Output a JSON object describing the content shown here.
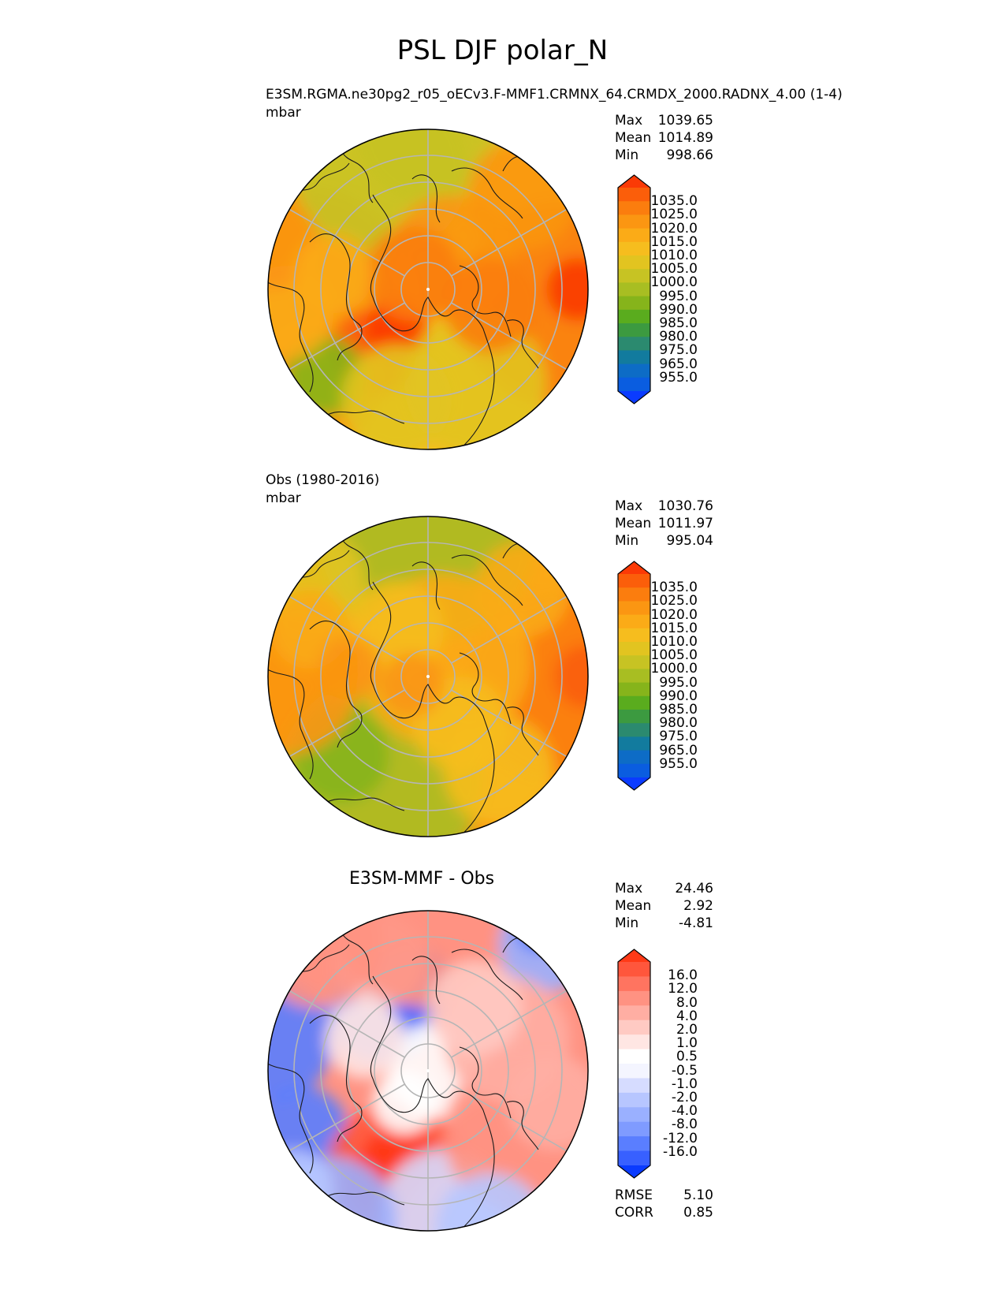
{
  "title": "PSL DJF polar_N",
  "palettes": {
    "abs": [
      "#0a3bff",
      "#0a5de0",
      "#0d6cc6",
      "#127b9e",
      "#2b8a6f",
      "#3c9a40",
      "#5aac1e",
      "#86b41b",
      "#a8be22",
      "#c7c323",
      "#e2c420",
      "#f6bd1e",
      "#fbab17",
      "#fb9612",
      "#fb7d0e",
      "#fb5e0a",
      "#fb3a06"
    ],
    "diff": [
      "#0a3bff",
      "#3860ff",
      "#5a7eff",
      "#7f9bff",
      "#9ab0ff",
      "#b7c6ff",
      "#d6dcff",
      "#f4f5ff",
      "#ffffff",
      "#ffe6e3",
      "#ffcac3",
      "#ffaea3",
      "#ff9282",
      "#ff7460",
      "#ff563c",
      "#ff3a17"
    ]
  },
  "panels": [
    {
      "id": "model",
      "title_line1": "E3SM.RGMA.ne30pg2_r05_oECv3.F-MMF1.CRMNX_64.CRMDX_2000.RADNX_4.00 (1-4)",
      "title_line2": "mbar",
      "stats": {
        "max_label": "Max",
        "max": "1039.65",
        "mean_label": "Mean",
        "mean": "1014.89",
        "min_label": "Min",
        "min": "998.66"
      },
      "colorbar_ticks": [
        "1035.0",
        "1025.0",
        "1020.0",
        "1015.0",
        "1010.0",
        "1005.0",
        "1000.0",
        "995.0",
        "990.0",
        "985.0",
        "980.0",
        "975.0",
        "965.0",
        "955.0"
      ]
    },
    {
      "id": "obs",
      "title_line1": "Obs (1980-2016)",
      "title_line2": "mbar",
      "stats": {
        "max_label": "Max",
        "max": "1030.76",
        "mean_label": "Mean",
        "mean": "1011.97",
        "min_label": "Min",
        "min": "995.04"
      },
      "colorbar_ticks": [
        "1035.0",
        "1025.0",
        "1020.0",
        "1015.0",
        "1010.0",
        "1005.0",
        "1000.0",
        "995.0",
        "990.0",
        "985.0",
        "980.0",
        "975.0",
        "965.0",
        "955.0"
      ]
    },
    {
      "id": "diff",
      "subtitle": "E3SM-MMF - Obs",
      "stats": {
        "max_label": "Max",
        "max": "24.46",
        "mean_label": "Mean",
        "mean": "2.92",
        "min_label": "Min",
        "min": "-4.81"
      },
      "colorbar_ticks": [
        "16.0",
        "12.0",
        "8.0",
        "4.0",
        "2.0",
        "1.0",
        "0.5",
        "-0.5",
        "-1.0",
        "-2.0",
        "-4.0",
        "-8.0",
        "-12.0",
        "-16.0"
      ],
      "metrics": {
        "rmse_label": "RMSE",
        "rmse": "5.10",
        "corr_label": "CORR",
        "corr": "0.85"
      }
    }
  ],
  "chart_data": [
    {
      "type": "heatmap",
      "projection": "north-polar-stereographic",
      "title": "E3SM.RGMA.ne30pg2_r05_oECv3.F-MMF1.CRMNX_64.CRMDX_2000.RADNX_4.00 (1-4)",
      "units": "mbar",
      "max": 1039.65,
      "mean": 1014.89,
      "min": 998.66,
      "levels": [
        955,
        965,
        975,
        980,
        985,
        990,
        995,
        1000,
        1005,
        1010,
        1015,
        1020,
        1025,
        1035
      ]
    },
    {
      "type": "heatmap",
      "projection": "north-polar-stereographic",
      "title": "Obs (1980-2016)",
      "units": "mbar",
      "max": 1030.76,
      "mean": 1011.97,
      "min": 995.04,
      "levels": [
        955,
        965,
        975,
        980,
        985,
        990,
        995,
        1000,
        1005,
        1010,
        1015,
        1020,
        1025,
        1035
      ]
    },
    {
      "type": "heatmap",
      "projection": "north-polar-stereographic",
      "title": "E3SM-MMF - Obs",
      "max": 24.46,
      "mean": 2.92,
      "min": -4.81,
      "rmse": 5.1,
      "corr": 0.85,
      "levels": [
        -16,
        -12,
        -8,
        -4,
        -2,
        -1,
        -0.5,
        0.5,
        1,
        2,
        4,
        8,
        12,
        16
      ]
    }
  ]
}
